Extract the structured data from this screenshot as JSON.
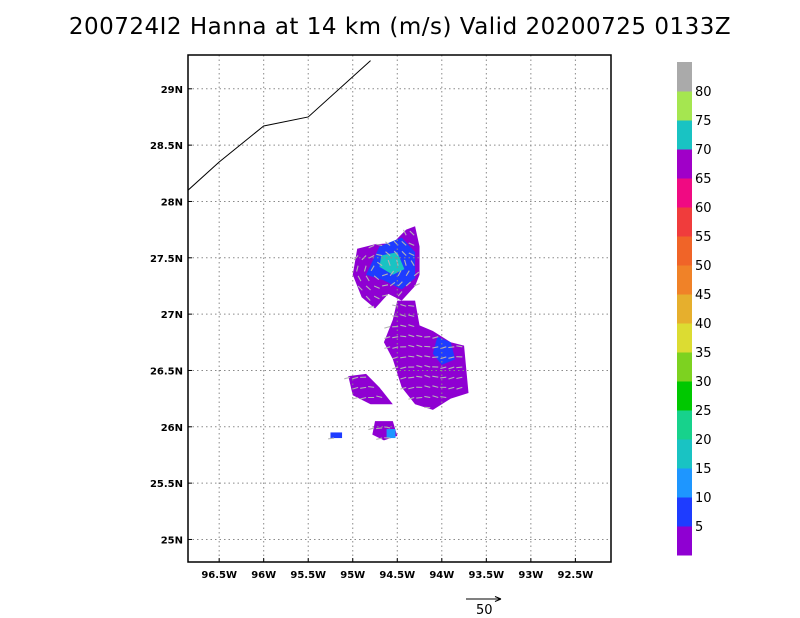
{
  "title": "200724I2 Hanna at 14 km (m/s) Valid 20200725 0133Z",
  "chart_data": {
    "type": "heatmap",
    "title": "200724I2 Hanna at 14 km (m/s) Valid 20200725 0133Z",
    "xlabel": "",
    "ylabel": "",
    "xlim": [
      -96.85,
      -92.1
    ],
    "ylim": [
      24.8,
      29.3
    ],
    "grid": true,
    "x_ticks": [
      -96.5,
      -96,
      -95.5,
      -95,
      -94.5,
      -94,
      -93.5,
      -93,
      -92.5
    ],
    "x_tick_labels": [
      "96.5W",
      "96W",
      "95.5W",
      "95W",
      "94.5W",
      "94W",
      "93.5W",
      "93W",
      "92.5W"
    ],
    "y_ticks": [
      25,
      25.5,
      26,
      26.5,
      27,
      27.5,
      28,
      28.5,
      29
    ],
    "y_tick_labels": [
      "25N",
      "25.5N",
      "26N",
      "26.5N",
      "27N",
      "27.5N",
      "28N",
      "28.5N",
      "29N"
    ],
    "colorbar": {
      "labels": [
        "5",
        "10",
        "15",
        "20",
        "25",
        "30",
        "35",
        "40",
        "45",
        "50",
        "55",
        "60",
        "65",
        "70",
        "75",
        "80"
      ],
      "colors": [
        "#8f00d2",
        "#1e3cff",
        "#1e96ff",
        "#19c3c3",
        "#17d28c",
        "#00c800",
        "#7dd220",
        "#dcdc32",
        "#e6af2d",
        "#f08228",
        "#f06428",
        "#f03c3c",
        "#f00a82",
        "#a000c8",
        "#19c3c3",
        "#a5e650",
        "#aaaaaa"
      ]
    },
    "coastline": [
      [
        -96.85,
        28.1
      ],
      [
        -96.5,
        28.35
      ],
      [
        -96.0,
        28.67
      ],
      [
        -95.5,
        28.75
      ],
      [
        -94.8,
        29.25
      ]
    ],
    "regions": [
      {
        "name": "northern blob",
        "level": 5,
        "polygon": [
          [
            -94.95,
            27.58
          ],
          [
            -94.75,
            27.62
          ],
          [
            -94.55,
            27.63
          ],
          [
            -94.4,
            27.75
          ],
          [
            -94.3,
            27.78
          ],
          [
            -94.25,
            27.6
          ],
          [
            -94.25,
            27.35
          ],
          [
            -94.3,
            27.25
          ],
          [
            -94.45,
            27.12
          ],
          [
            -94.6,
            27.18
          ],
          [
            -94.75,
            27.05
          ],
          [
            -94.9,
            27.15
          ],
          [
            -95.0,
            27.35
          ]
        ]
      },
      {
        "name": "northern blob core",
        "level": 10,
        "polygon": [
          [
            -94.7,
            27.6
          ],
          [
            -94.45,
            27.68
          ],
          [
            -94.3,
            27.55
          ],
          [
            -94.3,
            27.32
          ],
          [
            -94.45,
            27.22
          ],
          [
            -94.65,
            27.3
          ],
          [
            -94.85,
            27.35
          ]
        ]
      },
      {
        "name": "northern blob center",
        "level": 20,
        "polygon": [
          [
            -94.68,
            27.52
          ],
          [
            -94.5,
            27.55
          ],
          [
            -94.42,
            27.4
          ],
          [
            -94.55,
            27.35
          ],
          [
            -94.7,
            27.42
          ]
        ]
      },
      {
        "name": "central band",
        "level": 5,
        "polygon": [
          [
            -94.5,
            27.12
          ],
          [
            -94.3,
            27.12
          ],
          [
            -94.25,
            26.9
          ],
          [
            -94.1,
            26.85
          ],
          [
            -93.9,
            26.75
          ],
          [
            -93.75,
            26.72
          ],
          [
            -93.7,
            26.3
          ],
          [
            -93.9,
            26.25
          ],
          [
            -94.1,
            26.15
          ],
          [
            -94.3,
            26.2
          ],
          [
            -94.45,
            26.35
          ],
          [
            -94.55,
            26.6
          ],
          [
            -94.65,
            26.75
          ],
          [
            -94.55,
            26.95
          ]
        ]
      },
      {
        "name": "central band east",
        "level": 10,
        "polygon": [
          [
            -94.05,
            26.8
          ],
          [
            -93.9,
            26.75
          ],
          [
            -93.85,
            26.6
          ],
          [
            -94.0,
            26.55
          ],
          [
            -94.1,
            26.65
          ]
        ]
      },
      {
        "name": "western arm",
        "level": 5,
        "polygon": [
          [
            -95.05,
            26.45
          ],
          [
            -94.85,
            26.47
          ],
          [
            -94.7,
            26.35
          ],
          [
            -94.55,
            26.2
          ],
          [
            -94.8,
            26.2
          ],
          [
            -95.0,
            26.28
          ]
        ]
      },
      {
        "name": "southern blob",
        "level": 5,
        "polygon": [
          [
            -94.75,
            26.05
          ],
          [
            -94.55,
            26.05
          ],
          [
            -94.5,
            25.92
          ],
          [
            -94.65,
            25.88
          ],
          [
            -94.78,
            25.93
          ]
        ]
      },
      {
        "name": "southern blob edge",
        "level": 15,
        "polygon": [
          [
            -94.62,
            25.98
          ],
          [
            -94.52,
            25.98
          ],
          [
            -94.52,
            25.9
          ],
          [
            -94.62,
            25.9
          ]
        ]
      },
      {
        "name": "isolated cell",
        "level": 10,
        "polygon": [
          [
            -95.25,
            25.95
          ],
          [
            -95.12,
            25.95
          ],
          [
            -95.12,
            25.9
          ],
          [
            -95.25,
            25.9
          ]
        ]
      }
    ],
    "reference_vector": {
      "magnitude": 50,
      "label": "50"
    }
  }
}
